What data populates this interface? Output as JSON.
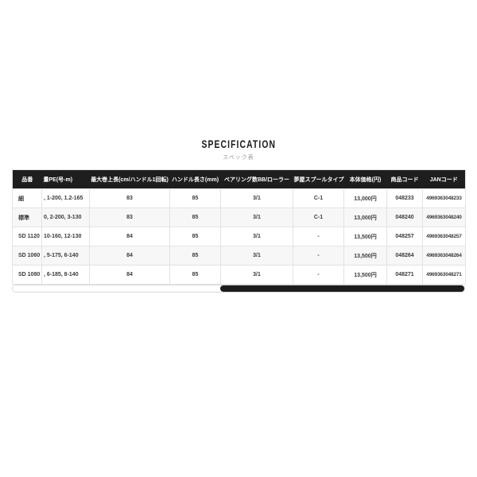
{
  "page": {
    "title": "SPECIFICATION",
    "subtitle": "スペック表"
  },
  "spec_table": {
    "columns": [
      "品番",
      "量PE(号-m)",
      "最大巻上長(cm/ハンドル1回転)",
      "ハンドル長さ(mm)",
      "ベアリング数BB/ローラー",
      "夢屋スプールタイプ",
      "本体価格(円)",
      "商品コード",
      "JANコード"
    ],
    "rows": [
      [
        "細",
        ", 1-200, 1.2-165",
        "83",
        "85",
        "3/1",
        "C-1",
        "13,000円",
        "048233",
        "4969363048233"
      ],
      [
        "標準",
        "0, 2-200, 3-130",
        "83",
        "85",
        "3/1",
        "C-1",
        "13,000円",
        "048240",
        "4969363048240"
      ],
      [
        "SD 1120",
        "10-160, 12-130",
        "84",
        "85",
        "3/1",
        "-",
        "13,500円",
        "048257",
        "4969363048257"
      ],
      [
        "SD 1060",
        ", 5-175, 6-140",
        "84",
        "85",
        "3/1",
        "-",
        "13,500円",
        "048264",
        "4969363048264"
      ],
      [
        "SD 1080",
        ", 6-185, 8-140",
        "84",
        "85",
        "3/1",
        "-",
        "13,500円",
        "048271",
        "4969363048271"
      ]
    ]
  },
  "scrollbar": {
    "orientation": "horizontal",
    "position": "right"
  },
  "colors": {
    "header_bg": "#1e1e1e",
    "header_text": "#ffffff",
    "row_alt_bg": "#f7f7f7",
    "border": "#e3e3e3",
    "cell_text": "#3a3a3a",
    "title_text": "#1a1a1a",
    "subtitle_text": "#999999",
    "scrollbar_thumb": "#1c1c1c"
  }
}
